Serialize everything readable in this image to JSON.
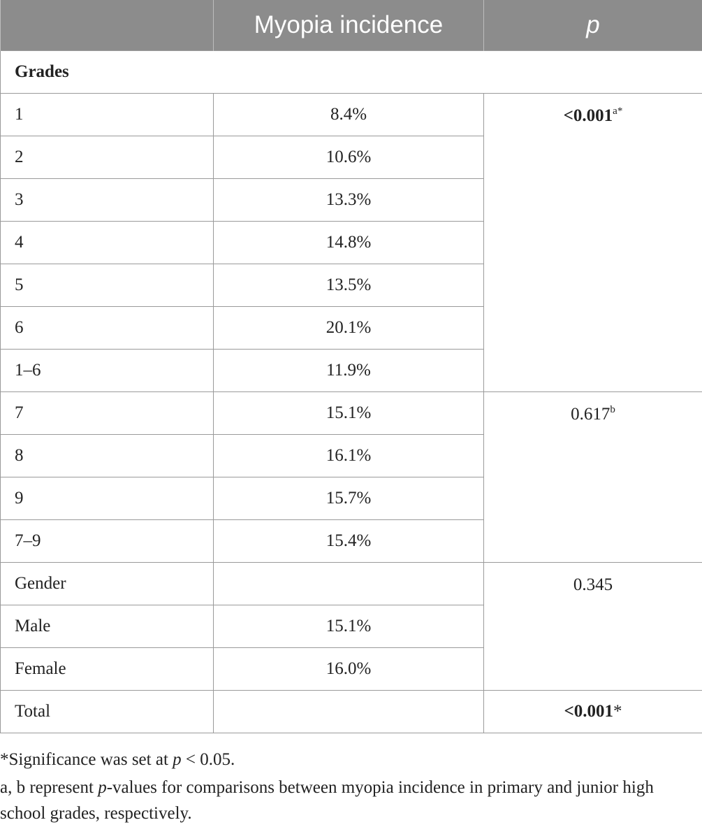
{
  "headers": [
    "",
    "Myopia incidence",
    "p"
  ],
  "section_label": "Grades",
  "primary_rows": [
    {
      "label": "1",
      "value": "8.4%"
    },
    {
      "label": "2",
      "value": "10.6%"
    },
    {
      "label": "3",
      "value": "13.3%"
    },
    {
      "label": "4",
      "value": "14.8%"
    },
    {
      "label": "5",
      "value": "13.5%"
    },
    {
      "label": "6",
      "value": "20.1%"
    },
    {
      "label": "1–6",
      "value": "11.9%"
    }
  ],
  "primary_p": {
    "value": "<0.001",
    "sup": "a*"
  },
  "junior_rows": [
    {
      "label": "7",
      "value": "15.1%"
    },
    {
      "label": "8",
      "value": "16.1%"
    },
    {
      "label": "9",
      "value": "15.7%"
    },
    {
      "label": "7–9",
      "value": "15.4%"
    }
  ],
  "junior_p": {
    "value": "0.617",
    "sup": "b"
  },
  "gender_rows": [
    {
      "label": "Gender",
      "value": ""
    },
    {
      "label": "Male",
      "value": "15.1%"
    },
    {
      "label": "Female",
      "value": "16.0%"
    }
  ],
  "gender_p": "0.345",
  "total": {
    "label": "Total",
    "value": "",
    "p": "<0.001",
    "p_suffix": "*"
  },
  "notes": {
    "line1_prefix": "*Significance was set at ",
    "line1_italic": "p",
    "line1_suffix": " < 0.05.",
    "line2_prefix": "a, b represent ",
    "line2_italic": "p",
    "line2_suffix": "-values for comparisons between myopia incidence in primary and junior high school grades, respectively."
  }
}
